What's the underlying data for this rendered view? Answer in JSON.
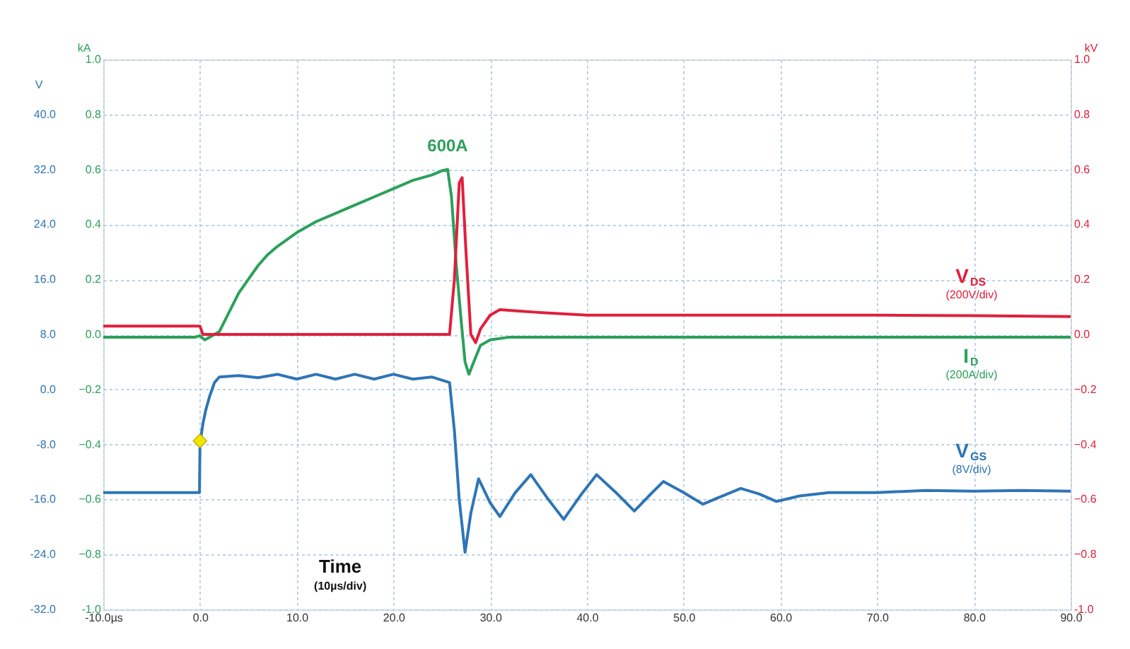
{
  "chart_data": {
    "type": "line",
    "xlabel": null,
    "ylabel": "kA",
    "y2label": "kV",
    "y3label": "V",
    "xlim": [
      -10,
      90
    ],
    "xticks": [
      {
        "value": -10,
        "label": "-10.0µs"
      },
      {
        "value": 0,
        "label": "0.0"
      },
      {
        "value": 10,
        "label": "10.0"
      },
      {
        "value": 20,
        "label": "20.0"
      },
      {
        "value": 30,
        "label": "30.0"
      },
      {
        "value": 40,
        "label": "40.0"
      },
      {
        "value": 50,
        "label": "50.0"
      },
      {
        "value": 60,
        "label": "60.0"
      },
      {
        "value": 70,
        "label": "70.0"
      },
      {
        "value": 80,
        "label": "80.0"
      },
      {
        "value": 90,
        "label": "90.0"
      }
    ],
    "ylim": [
      -1,
      1
    ],
    "yticks": [
      {
        "value": -1,
        "label": "-1.0"
      },
      -0.8,
      -0.6,
      -0.4,
      -0.2,
      {
        "value": 0,
        "label": "0.0"
      },
      0.2,
      0.4,
      0.6,
      0.8,
      {
        "value": 1,
        "label": "1.0"
      }
    ],
    "y2lim": [
      -1,
      1
    ],
    "y2ticks": [
      {
        "value": -1,
        "label": "-1.0"
      },
      -0.8,
      -0.6,
      -0.4,
      -0.2,
      {
        "value": 0,
        "label": "0.0"
      },
      0.2,
      0.4,
      0.6,
      0.8,
      {
        "value": 1,
        "label": "1.0"
      }
    ],
    "y3lim": [
      -32,
      48
    ],
    "y3ticks": [
      {
        "value": -32,
        "label": "-32.0"
      },
      {
        "value": -24,
        "label": "-24.0"
      },
      {
        "value": -16,
        "label": "-16.0"
      },
      {
        "value": -8,
        "label": "-8.0"
      },
      {
        "value": 0,
        "label": "0.0"
      },
      {
        "value": 8,
        "label": "8.0"
      },
      {
        "value": 16,
        "label": "16.0"
      },
      {
        "value": 24,
        "label": "24.0"
      },
      {
        "value": 32,
        "label": "32.0"
      },
      {
        "value": 40,
        "label": "40.0"
      }
    ],
    "grid": true,
    "line_style": "solid",
    "series": [
      {
        "name": "V$_{DS}$ (200V/div)",
        "color": "#e0203c",
        "axis": "y2",
        "x": [
          -10,
          0,
          0.3,
          25.8,
          26.3,
          26.8,
          27.1,
          27.5,
          28,
          28.5,
          29,
          30,
          31,
          33,
          35,
          40,
          50,
          60,
          70,
          80,
          90
        ],
        "values": [
          0.03,
          0.03,
          0.0,
          0.0,
          0.2,
          0.55,
          0.57,
          0.3,
          0.0,
          -0.03,
          0.02,
          0.07,
          0.09,
          0.085,
          0.08,
          0.07,
          0.07,
          0.07,
          0.07,
          0.068,
          0.065
        ]
      },
      {
        "name": "I$_{D}$ (200A/div)",
        "color": "#2ca05a",
        "axis": "y",
        "x": [
          -10,
          -0.5,
          0,
          0.5,
          1,
          1.5,
          2,
          3,
          4,
          5,
          6,
          7,
          8,
          10,
          12,
          14,
          16,
          18,
          20,
          22,
          24,
          25,
          25.6,
          26,
          26.5,
          27,
          27.4,
          27.8,
          28.3,
          29,
          30,
          32,
          35,
          40,
          50,
          60,
          70,
          80,
          90
        ],
        "values": [
          -0.01,
          -0.01,
          -0.005,
          -0.02,
          -0.01,
          0.0,
          0.01,
          0.08,
          0.15,
          0.2,
          0.25,
          0.29,
          0.32,
          0.37,
          0.41,
          0.44,
          0.47,
          0.5,
          0.53,
          0.56,
          0.58,
          0.595,
          0.6,
          0.5,
          0.25,
          0.05,
          -0.1,
          -0.145,
          -0.1,
          -0.04,
          -0.02,
          -0.01,
          -0.01,
          -0.01,
          -0.01,
          -0.01,
          -0.01,
          -0.01,
          -0.01
        ]
      },
      {
        "name": "V$_{GS}$ (8V/div)",
        "color": "#2e75b6",
        "axis": "y3",
        "x": [
          -10,
          -0.05,
          0,
          0.3,
          0.6,
          1,
          1.5,
          2,
          4,
          6,
          8,
          10,
          12,
          14,
          16,
          18,
          20,
          22,
          24,
          25.8,
          26.3,
          26.8,
          27.4,
          28,
          28.8,
          30,
          31,
          32.6,
          34.2,
          35.9,
          37.6,
          39.3,
          41,
          43,
          44.9,
          46.4,
          47.9,
          50,
          52,
          54,
          55.9,
          57.8,
          59.6,
          62,
          65,
          70,
          75,
          80,
          85,
          90
        ],
        "values": [
          -15,
          -15,
          -8,
          -5,
          -3,
          -1,
          1,
          1.8,
          2,
          1.7,
          2.2,
          1.5,
          2.2,
          1.5,
          2.2,
          1.5,
          2.2,
          1.5,
          1.8,
          1,
          -6,
          -16,
          -23.7,
          -18,
          -13,
          -16.5,
          -18.5,
          -15,
          -12.4,
          -15.8,
          -18.9,
          -15.5,
          -12.4,
          -15,
          -17.7,
          -15.5,
          -13.4,
          -15,
          -16.7,
          -15.5,
          -14.4,
          -15.2,
          -16.3,
          -15.5,
          -15,
          -15,
          -14.7,
          -14.8,
          -14.7,
          -14.8
        ]
      },
      {
        "type": "scatter",
        "marker": "diamond",
        "color": "#f2e600",
        "axis": "y3",
        "x": [
          0
        ],
        "values": [
          -7.5
        ]
      }
    ],
    "annotations": [
      {
        "text": "600A",
        "x": 25.6,
        "y": 0.6
      },
      "Time",
      "(10µs/div)"
    ]
  }
}
